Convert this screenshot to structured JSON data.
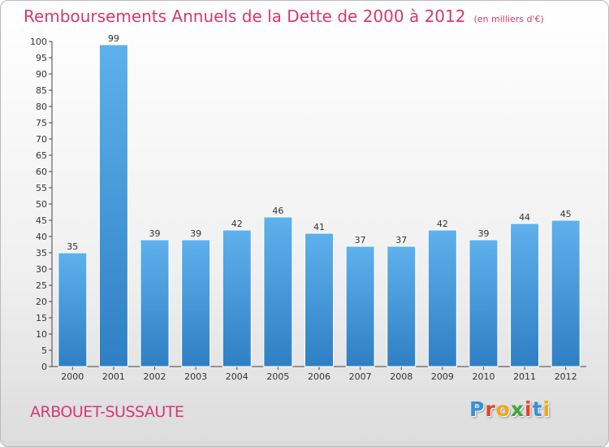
{
  "chart_data": {
    "type": "bar",
    "title": "Remboursements Annuels de la Dette de 2000 à 2012",
    "subtitle": "(en milliers d'€)",
    "categories": [
      "2000",
      "2001",
      "2002",
      "2003",
      "2004",
      "2005",
      "2006",
      "2007",
      "2008",
      "2009",
      "2010",
      "2011",
      "2012"
    ],
    "values": [
      35,
      99,
      39,
      39,
      42,
      46,
      41,
      37,
      37,
      42,
      39,
      44,
      45
    ],
    "ylim": [
      0,
      100
    ],
    "yticks": [
      0,
      5,
      10,
      15,
      20,
      25,
      30,
      35,
      40,
      45,
      50,
      55,
      60,
      65,
      70,
      75,
      80,
      85,
      90,
      95,
      100
    ],
    "grid": false,
    "legend": "none",
    "bar_color": "#4a9fdf"
  },
  "location": {
    "name": "ARBOUET-SUSSAUTE"
  },
  "brand": {
    "name": "Proxiti",
    "letter_colors": [
      "#3a8fd6",
      "#e8412c",
      "#f2a51b",
      "#3fa83a",
      "#e8412c",
      "#3a8fd6",
      "#f2a51b"
    ]
  }
}
